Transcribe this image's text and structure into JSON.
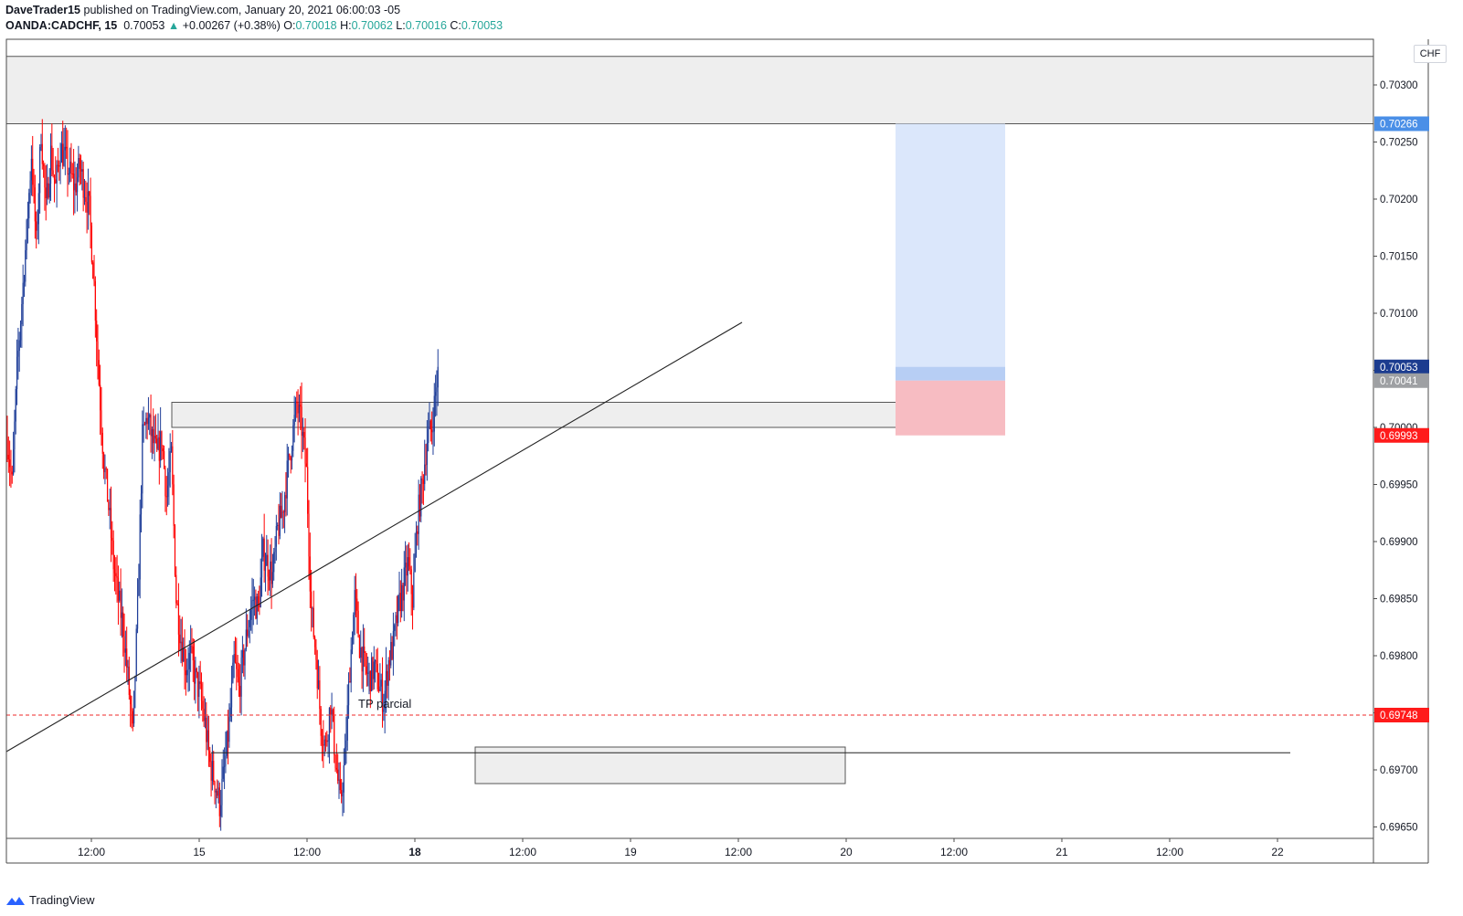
{
  "header": {
    "publisher": "DaveTrader15",
    "published_text": "published on TradingView.com, January 20, 2021 06:00:03 -05",
    "symbol": "OANDA:CADCHF, 15",
    "last": "0.70053",
    "change": "+0.00267 (+0.38%)",
    "o_label": "O:",
    "o": "0.70018",
    "h_label": "H:",
    "h": "0.70062",
    "l_label": "L:",
    "l": "0.70016",
    "c_label": "C:",
    "c": "0.70053",
    "up_arrow": "▲"
  },
  "currency_box": "CHF",
  "brand": "TradingView",
  "colors": {
    "up": "#1e3d98",
    "down": "#ff0000",
    "target_zone": "#dbe7fb",
    "stop_zone": "#f7bcc2",
    "zone_gray": "#eeeeee",
    "dashed_level": "#ef2a2a",
    "label_blue": "#4a8fe7",
    "label_navy": "#1c3c8f",
    "label_gray": "#9ea0a3",
    "label_red": "#ff1b1b"
  },
  "annotation_text": "TP parcial",
  "chart_data": {
    "type": "candlestick",
    "ylim": [
      0.6964,
      0.7034
    ],
    "y_ticks": [
      "0.70300",
      "0.70250",
      "0.70200",
      "0.70150",
      "0.70100",
      "0.70050",
      "0.70000",
      "0.69950",
      "0.69900",
      "0.69850",
      "0.69800",
      "0.69750",
      "0.69700",
      "0.69650"
    ],
    "x_ticks": [
      "12:00",
      "15",
      "12:00",
      "18",
      "12:00",
      "19",
      "12:00",
      "20",
      "12:00",
      "21",
      "12:00",
      "22"
    ],
    "x_ticks_bold": [
      false,
      false,
      false,
      true,
      false,
      false,
      false,
      false,
      false,
      false,
      false,
      false
    ],
    "price_labels": [
      {
        "text": "0.70266",
        "value": 0.70266,
        "color": "label_blue"
      },
      {
        "text": "0.70053",
        "value": 0.70053,
        "color": "label_navy"
      },
      {
        "text": "0.70041",
        "value": 0.70041,
        "color": "label_gray"
      },
      {
        "text": "0.69993",
        "value": 0.69993,
        "color": "label_red"
      },
      {
        "text": "0.69748",
        "value": 0.69748,
        "color": "label_red"
      }
    ],
    "levels": {
      "dashed": 0.69748,
      "support_line": 0.69715,
      "resistance_zone": [
        0.70266,
        0.70325
      ],
      "mid_zone": [
        0.7,
        0.70022
      ],
      "low_zone": [
        0.69688,
        0.6972
      ]
    },
    "position": {
      "entry": 0.70041,
      "target": 0.70266,
      "stop": 0.69993,
      "fill_top": 0.70053
    },
    "path": [
      [
        0,
        0.6999
      ],
      [
        4,
        0.6995
      ],
      [
        8,
        0.7005
      ],
      [
        12,
        0.7011
      ],
      [
        16,
        0.7017
      ],
      [
        20,
        0.7024
      ],
      [
        24,
        0.7016
      ],
      [
        28,
        0.7026
      ],
      [
        32,
        0.7019
      ],
      [
        36,
        0.7024
      ],
      [
        40,
        0.7021
      ],
      [
        44,
        0.70245
      ],
      [
        48,
        0.70235
      ],
      [
        52,
        0.70222
      ],
      [
        56,
        0.7021
      ],
      [
        60,
        0.70228
      ],
      [
        64,
        0.7021
      ],
      [
        68,
        0.7019
      ],
      [
        72,
        0.70125
      ],
      [
        76,
        0.7004
      ],
      [
        80,
        0.6997
      ],
      [
        84,
        0.6993
      ],
      [
        88,
        0.6988
      ],
      [
        92,
        0.6985
      ],
      [
        96,
        0.69825
      ],
      [
        100,
        0.6978
      ],
      [
        104,
        0.6973
      ],
      [
        108,
        0.6984
      ],
      [
        112,
        0.6999
      ],
      [
        116,
        0.7001
      ],
      [
        120,
        0.6999
      ],
      [
        124,
        0.69975
      ],
      [
        128,
        0.6999
      ],
      [
        132,
        0.6994
      ],
      [
        136,
        0.69975
      ],
      [
        140,
        0.6985
      ],
      [
        144,
        0.69815
      ],
      [
        148,
        0.6979
      ],
      [
        152,
        0.698
      ],
      [
        156,
        0.6978
      ],
      [
        160,
        0.69765
      ],
      [
        164,
        0.6974
      ],
      [
        168,
        0.69705
      ],
      [
        172,
        0.6969
      ],
      [
        176,
        0.6967
      ],
      [
        180,
        0.697
      ],
      [
        184,
        0.6974
      ],
      [
        188,
        0.69795
      ],
      [
        192,
        0.6977
      ],
      [
        196,
        0.698
      ],
      [
        200,
        0.6983
      ],
      [
        204,
        0.6985
      ],
      [
        208,
        0.6984
      ],
      [
        212,
        0.6989
      ],
      [
        216,
        0.6988
      ],
      [
        220,
        0.6987
      ],
      [
        224,
        0.6991
      ],
      [
        228,
        0.69925
      ],
      [
        232,
        0.6996
      ],
      [
        236,
        0.6999
      ],
      [
        240,
        0.7002
      ],
      [
        244,
        0.7
      ],
      [
        248,
        0.6996
      ],
      [
        252,
        0.6984
      ],
      [
        256,
        0.698
      ],
      [
        260,
        0.6974
      ],
      [
        264,
        0.6972
      ],
      [
        268,
        0.6976
      ],
      [
        272,
        0.6971
      ],
      [
        276,
        0.6967
      ],
      [
        280,
        0.6971
      ],
      [
        284,
        0.6979
      ],
      [
        288,
        0.6985
      ],
      [
        292,
        0.6981
      ],
      [
        296,
        0.6979
      ],
      [
        300,
        0.6978
      ],
      [
        304,
        0.6979
      ],
      [
        308,
        0.69775
      ],
      [
        312,
        0.6976
      ],
      [
        316,
        0.69795
      ],
      [
        320,
        0.6981
      ],
      [
        324,
        0.6984
      ],
      [
        328,
        0.6986
      ],
      [
        332,
        0.6988
      ],
      [
        336,
        0.6985
      ],
      [
        340,
        0.6992
      ],
      [
        344,
        0.6995
      ],
      [
        348,
        0.6999
      ],
      [
        352,
        0.7
      ],
      [
        356,
        0.7004
      ],
      [
        357,
        0.70053
      ]
    ]
  }
}
